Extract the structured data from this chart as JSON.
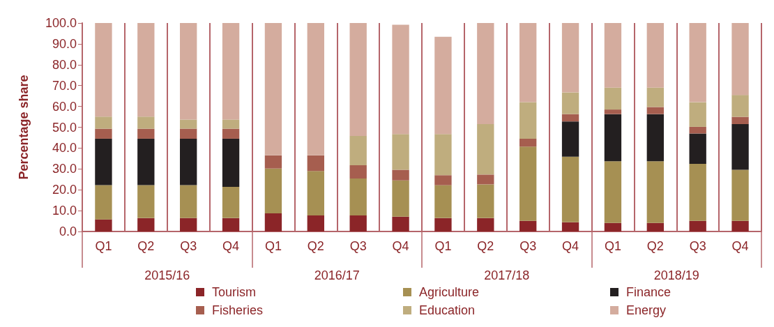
{
  "chart_data": {
    "type": "bar",
    "stacked": true,
    "ylabel": "Percentage share",
    "categories": [
      "Q1",
      "Q2",
      "Q3",
      "Q4",
      "Q1",
      "Q2",
      "Q3",
      "Q4",
      "Q1",
      "Q2",
      "Q3",
      "Q4",
      "Q1",
      "Q2",
      "Q3",
      "Q4"
    ],
    "annotations": [
      "2015/16",
      "2016/17",
      "2017/18",
      "2018/19"
    ],
    "series": [
      {
        "name": "Tourism",
        "color": "#8b2528",
        "values": [
          5.8,
          6.4,
          6.4,
          6.4,
          8.7,
          7.7,
          7.7,
          7.1,
          6.4,
          6.4,
          5.1,
          4.4,
          4.1,
          4.1,
          5.1,
          5.1
        ]
      },
      {
        "name": "Agriculture",
        "color": "#a69053",
        "values": [
          16.4,
          15.8,
          15.8,
          15.0,
          21.5,
          21.3,
          17.7,
          17.4,
          15.8,
          16.2,
          35.6,
          31.5,
          29.6,
          29.6,
          27.3,
          24.5
        ]
      },
      {
        "name": "Finance",
        "color": "#231f20",
        "values": [
          22.3,
          22.3,
          22.3,
          23.1,
          null,
          null,
          null,
          null,
          null,
          null,
          null,
          16.9,
          22.6,
          22.6,
          14.6,
          21.9
        ]
      },
      {
        "name": "Fisheries",
        "color": "#a65e4f",
        "values": [
          4.8,
          4.8,
          4.8,
          4.8,
          6.3,
          7.5,
          6.4,
          5.1,
          4.8,
          4.7,
          3.8,
          3.5,
          2.2,
          3.4,
          3.2,
          3.5
        ]
      },
      {
        "name": "Education",
        "color": "#bfad7e",
        "values": [
          5.8,
          5.8,
          4.4,
          4.4,
          null,
          null,
          14.0,
          17.1,
          19.7,
          24.2,
          17.5,
          10.4,
          10.5,
          9.3,
          11.8,
          10.5
        ]
      },
      {
        "name": "Energy",
        "color": "#d4ac9e",
        "values": [
          44.9,
          44.9,
          46.3,
          46.3,
          63.5,
          63.5,
          54.2,
          52.5,
          46.7,
          48.5,
          38.0,
          33.3,
          31.0,
          31.0,
          38.0,
          34.5
        ]
      }
    ],
    "ylim": [
      0,
      100
    ],
    "yticks": [
      {
        "value": 0,
        "label": "0.0"
      },
      {
        "value": 10,
        "label": "10.0"
      },
      {
        "value": 20,
        "label": "20.0"
      },
      {
        "value": 30,
        "label": "30.0"
      },
      {
        "value": 40,
        "label": "40.0"
      },
      {
        "value": 50,
        "label": "50.0"
      },
      {
        "value": 60,
        "label": "60.0"
      },
      {
        "value": 70,
        "label": "70.0"
      },
      {
        "value": 80,
        "label": "80.0"
      },
      {
        "value": 90,
        "label": "90.0"
      },
      {
        "value": 100,
        "label": "100.0"
      }
    ],
    "grid": "x",
    "legend": "bottom"
  }
}
